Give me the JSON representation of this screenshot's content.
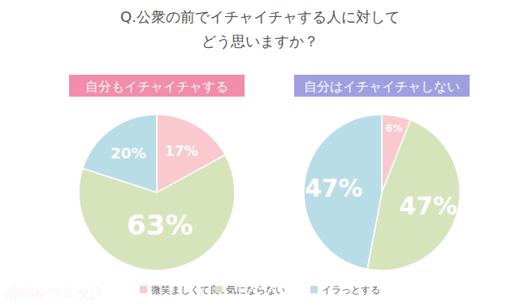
{
  "title": [
    "Q.公衆の前でイチャイチャする人に対して",
    "どう思いますか？"
  ],
  "brand": "めちゃコミック",
  "chart_data": [
    {
      "type": "pie",
      "title": "自分もイチャイチャする",
      "categories": [
        "微笑ましくて良い",
        "気にならない",
        "イラっとする"
      ],
      "values": [
        17,
        63,
        20
      ],
      "value_labels": [
        "17%",
        "63%",
        "20%"
      ],
      "colors": [
        "#f9c9cd",
        "#d6e4bc",
        "#b9dde7"
      ],
      "data_labels": true,
      "legend": "bottom"
    },
    {
      "type": "pie",
      "title": "自分はイチャイチャしない",
      "categories": [
        "微笑ましくて良い",
        "気にならない",
        "イラっとする"
      ],
      "values": [
        6,
        47,
        47
      ],
      "value_labels": [
        "6%",
        "47%",
        "47%"
      ],
      "colors": [
        "#f9c9cd",
        "#d6e4bc",
        "#b9dde7"
      ],
      "data_labels": true,
      "legend": "bottom"
    }
  ]
}
